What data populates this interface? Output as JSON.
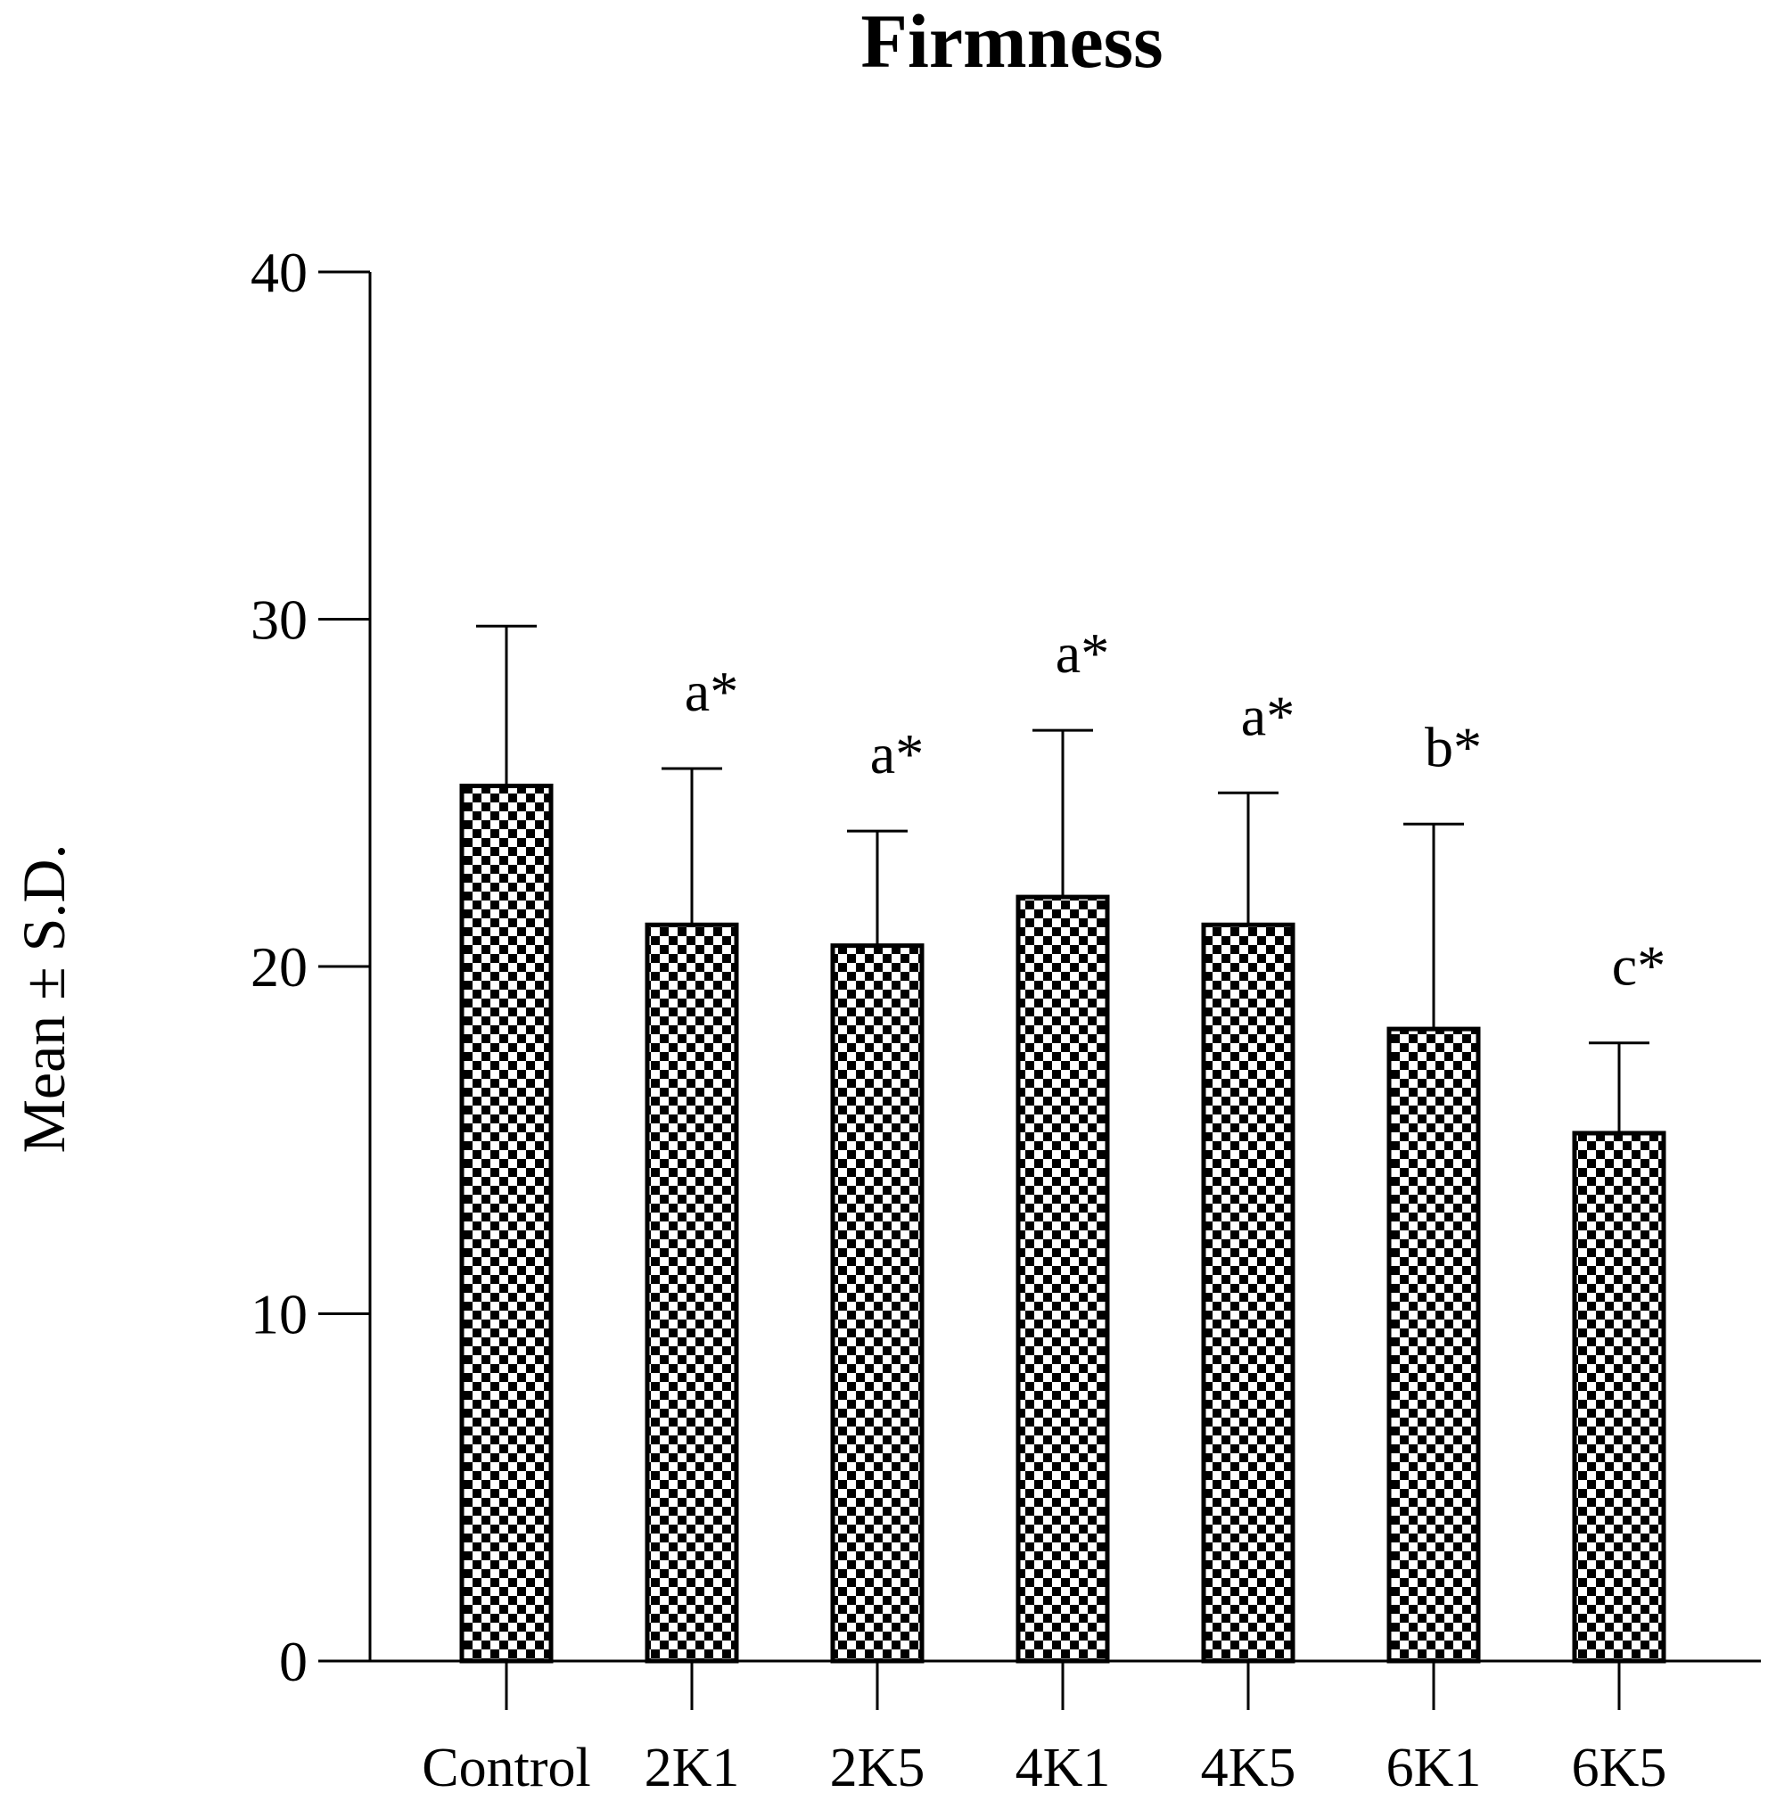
{
  "chart_data": {
    "type": "bar",
    "title": "Firmness",
    "xlabel": "",
    "ylabel": "Mean ± S.D.",
    "ylim": [
      0,
      40
    ],
    "yticks": [
      0,
      10,
      20,
      30,
      40
    ],
    "categories": [
      "Control",
      "2K1",
      "2K5",
      "4K1",
      "4K5",
      "6K1",
      "6K5"
    ],
    "values": [
      25.2,
      21.2,
      20.6,
      22.0,
      21.2,
      18.2,
      15.2
    ],
    "errors": [
      4.6,
      4.5,
      3.3,
      4.8,
      3.8,
      5.9,
      2.6
    ],
    "annotations": [
      "",
      "a*",
      "a*",
      "a*",
      "a*",
      "b*",
      "c*"
    ],
    "fill_pattern": "checkerboard",
    "bar_color": "#000000",
    "grid": false,
    "legend": "none"
  }
}
